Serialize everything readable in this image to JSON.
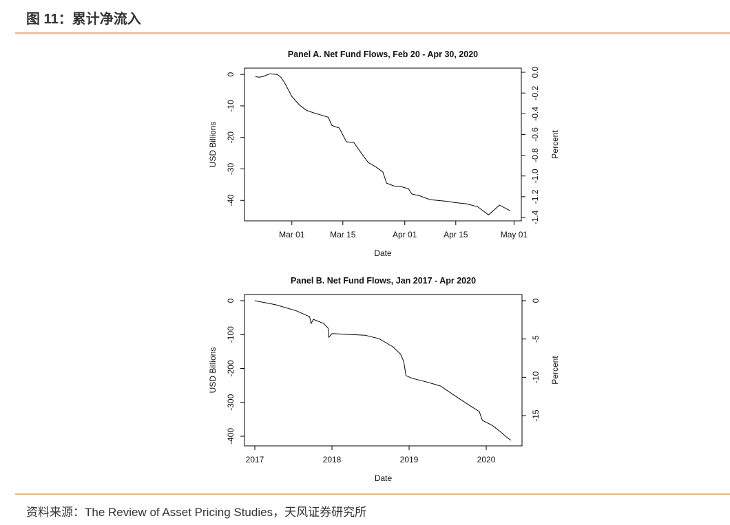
{
  "header": {
    "title": "图 11：累计净流入"
  },
  "source": "资料来源：The Review of Asset Pricing Studies，天风证券研究所",
  "chart_data": [
    {
      "type": "line",
      "title": "Panel A. Net Fund Flows, Feb 20 - Apr 30, 2020",
      "xlabel": "Date",
      "ylabel": "USD Billions",
      "y2label": "Percent",
      "x": [
        "Feb 20",
        "Feb 21",
        "Feb 22",
        "Feb 24",
        "Feb 26",
        "Feb 27",
        "Feb 28",
        "Mar 01",
        "Mar 03",
        "Mar 05",
        "Mar 07",
        "Mar 09",
        "Mar 11",
        "Mar 12",
        "Mar 14",
        "Mar 16",
        "Mar 18",
        "Mar 20",
        "Mar 22",
        "Mar 24",
        "Mar 26",
        "Mar 27",
        "Mar 29",
        "Mar 31",
        "Apr 02",
        "Apr 03",
        "Apr 05",
        "Apr 08",
        "Apr 12",
        "Apr 15",
        "Apr 18",
        "Apr 21",
        "Apr 24",
        "Apr 27",
        "Apr 30"
      ],
      "values": [
        -0.7,
        -0.9,
        -0.7,
        0.2,
        0,
        -0.9,
        -2.6,
        -7,
        -9.6,
        -11.4,
        -12.2,
        -12.9,
        -13.6,
        -16.2,
        -17,
        -21.4,
        -21.6,
        -24.9,
        -28,
        -29.3,
        -31,
        -34.5,
        -35.4,
        -35.6,
        -36.3,
        -38,
        -38.5,
        -39.8,
        -40.2,
        -40.7,
        -41.1,
        -42,
        -44.6,
        -41.5,
        -43.3
      ],
      "color": "#000000",
      "xlim": [
        "Feb 17",
        "May 03"
      ],
      "xticks": [
        "Mar 01",
        "Mar 15",
        "Apr 01",
        "Apr 15",
        "May 01"
      ],
      "ylim": [
        -46.5,
        2
      ],
      "yticks": [
        -40,
        -30,
        -20,
        -10,
        0
      ],
      "y2lim": [
        -1.433,
        0.04
      ],
      "y2ticks": [
        {
          "value": -1.4,
          "label": "-1.4"
        },
        -1.2,
        {
          "value": -1.0,
          "label": "-1.0"
        },
        -0.8,
        -0.6,
        -0.4,
        -0.2,
        {
          "value": 0,
          "label": "0.0"
        }
      ]
    },
    {
      "type": "line",
      "title": "Panel B. Net Fund Flows, Jan 2017 - Apr 2020",
      "xlabel": "Date",
      "ylabel": "USD Billions",
      "y2label": "Percent",
      "x": [
        2017,
        2017.27,
        2017.54,
        2017.71,
        2017.73,
        2017.76,
        2017.89,
        2017.95,
        2017.96,
        2018,
        2018.16,
        2018.43,
        2018.61,
        2018.79,
        2018.89,
        2018.93,
        2018.96,
        2019.04,
        2019.23,
        2019.41,
        2019.59,
        2019.77,
        2019.91,
        2019.95,
        2020.08,
        2020.18,
        2020.26,
        2020.32
      ],
      "values": [
        0,
        -12,
        -30,
        -47,
        -67,
        -55,
        -67,
        -81,
        -108,
        -97,
        -99,
        -102,
        -112,
        -136,
        -158,
        -179,
        -221,
        -229,
        -240,
        -252,
        -280,
        -307,
        -327,
        -353,
        -368,
        -386,
        -402,
        -412
      ],
      "color": "#000000",
      "xlim": [
        2016.866,
        2020.464
      ],
      "xticks": [
        2017,
        2018,
        2019,
        2020
      ],
      "ylim": [
        -428.4,
        18.3
      ],
      "yticks": [
        -400,
        -300,
        -200,
        -100,
        0
      ],
      "y2lim": [
        -18.95,
        0.81
      ],
      "y2ticks": [
        -15,
        -10,
        -5,
        0
      ]
    }
  ]
}
